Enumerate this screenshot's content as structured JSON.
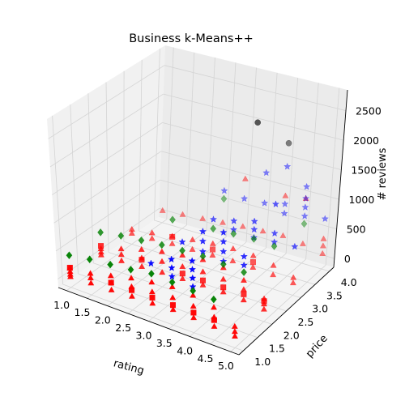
{
  "chart_data": {
    "type": "scatter3d",
    "title": "Business k-Means++",
    "xlabel": "rating",
    "ylabel": "price",
    "zlabel": "# reviews",
    "xlim": [
      0.8,
      5.2
    ],
    "ylim": [
      0.85,
      4.15
    ],
    "zlim": [
      -150,
      2850
    ],
    "xticks": [
      "1.0",
      "1.5",
      "2.0",
      "2.5",
      "3.0",
      "3.5",
      "4.0",
      "4.5",
      "5.0"
    ],
    "yticks": [
      "1.0",
      "1.5",
      "2.0",
      "2.5",
      "3.0",
      "3.5",
      "4.0"
    ],
    "zticks": [
      "0",
      "500",
      "1000",
      "1500",
      "2000",
      "2500"
    ],
    "grid": true,
    "colors": {
      "red": "#ff0000",
      "blue": "#0000ff",
      "green": "#008000",
      "black": "#000000"
    },
    "series": [
      {
        "color": "red",
        "marker": "triangle",
        "points": [
          [
            1.0,
            1.0,
            40
          ],
          [
            1.0,
            1.0,
            80
          ],
          [
            1.0,
            1.0,
            130
          ],
          [
            1.0,
            1.0,
            190
          ],
          [
            1.5,
            1.0,
            60
          ],
          [
            1.5,
            1.0,
            150
          ],
          [
            1.5,
            1.0,
            230
          ],
          [
            2.0,
            1.0,
            70
          ],
          [
            2.0,
            1.0,
            200
          ],
          [
            2.0,
            1.0,
            320
          ],
          [
            2.5,
            1.0,
            90
          ],
          [
            2.5,
            1.0,
            260
          ],
          [
            2.5,
            1.0,
            410
          ],
          [
            3.0,
            1.0,
            100
          ],
          [
            3.0,
            1.0,
            300
          ],
          [
            3.0,
            1.0,
            470
          ],
          [
            3.5,
            1.0,
            120
          ],
          [
            3.5,
            1.0,
            330
          ],
          [
            3.5,
            1.0,
            520
          ],
          [
            4.0,
            1.0,
            110
          ],
          [
            4.0,
            1.0,
            310
          ],
          [
            4.0,
            1.0,
            500
          ],
          [
            4.5,
            1.0,
            90
          ],
          [
            4.5,
            1.0,
            250
          ],
          [
            4.5,
            1.0,
            420
          ],
          [
            5.0,
            1.0,
            50
          ],
          [
            5.0,
            1.0,
            130
          ],
          [
            5.0,
            1.0,
            220
          ],
          [
            1.0,
            2.0,
            40
          ],
          [
            1.0,
            2.0,
            90
          ],
          [
            1.0,
            2.0,
            150
          ],
          [
            1.5,
            2.0,
            60
          ],
          [
            1.5,
            2.0,
            170
          ],
          [
            1.5,
            2.0,
            270
          ],
          [
            2.0,
            2.0,
            80
          ],
          [
            2.0,
            2.0,
            230
          ],
          [
            2.0,
            2.0,
            380
          ],
          [
            2.5,
            2.0,
            100
          ],
          [
            2.5,
            2.0,
            290
          ],
          [
            2.5,
            2.0,
            460
          ],
          [
            3.0,
            2.0,
            110
          ],
          [
            3.0,
            2.0,
            320
          ],
          [
            3.0,
            2.0,
            520
          ],
          [
            3.5,
            2.0,
            120
          ],
          [
            3.5,
            2.0,
            350
          ],
          [
            3.5,
            2.0,
            560
          ],
          [
            4.0,
            2.0,
            120
          ],
          [
            4.0,
            2.0,
            340
          ],
          [
            4.0,
            2.0,
            540
          ],
          [
            4.5,
            2.0,
            100
          ],
          [
            4.5,
            2.0,
            280
          ],
          [
            4.5,
            2.0,
            440
          ],
          [
            5.0,
            2.0,
            60
          ],
          [
            5.0,
            2.0,
            150
          ],
          [
            5.0,
            2.0,
            240
          ],
          [
            1.0,
            3.0,
            40
          ],
          [
            1.0,
            3.0,
            110
          ],
          [
            1.5,
            3.0,
            60
          ],
          [
            1.5,
            3.0,
            160
          ],
          [
            2.0,
            3.0,
            80
          ],
          [
            2.0,
            3.0,
            210
          ],
          [
            2.5,
            3.0,
            90
          ],
          [
            2.5,
            3.0,
            260
          ],
          [
            3.0,
            3.0,
            100
          ],
          [
            3.0,
            3.0,
            300
          ],
          [
            3.5,
            3.0,
            110
          ],
          [
            3.5,
            3.0,
            320
          ],
          [
            4.0,
            3.0,
            110
          ],
          [
            4.0,
            3.0,
            310
          ],
          [
            4.5,
            3.0,
            90
          ],
          [
            4.5,
            3.0,
            250
          ],
          [
            5.0,
            3.0,
            60
          ],
          [
            5.0,
            3.0,
            150
          ],
          [
            1.0,
            4.0,
            60
          ],
          [
            1.5,
            4.0,
            90
          ],
          [
            2.0,
            4.0,
            120
          ],
          [
            2.5,
            4.0,
            150
          ],
          [
            3.0,
            4.0,
            180
          ],
          [
            3.5,
            4.0,
            200
          ],
          [
            4.0,
            4.0,
            220
          ],
          [
            4.5,
            4.0,
            180
          ],
          [
            5.0,
            4.0,
            110
          ],
          [
            3.0,
            4.0,
            1000
          ],
          [
            4.0,
            4.0,
            900
          ],
          [
            4.5,
            4.0,
            950
          ],
          [
            5.0,
            4.0,
            240
          ],
          [
            5.0,
            4.0,
            360
          ]
        ]
      },
      {
        "color": "blue",
        "marker": "star",
        "points": [
          [
            3.5,
            1.0,
            700
          ],
          [
            3.5,
            1.0,
            850
          ],
          [
            3.5,
            1.0,
            1000
          ],
          [
            4.0,
            1.0,
            650
          ],
          [
            4.0,
            1.0,
            800
          ],
          [
            4.0,
            1.0,
            950
          ],
          [
            4.0,
            1.0,
            1100
          ],
          [
            3.5,
            2.0,
            700
          ],
          [
            3.5,
            2.0,
            880
          ],
          [
            3.5,
            2.0,
            1050
          ],
          [
            4.0,
            2.0,
            650
          ],
          [
            4.0,
            2.0,
            820
          ],
          [
            4.0,
            2.0,
            990
          ],
          [
            4.0,
            2.0,
            1150
          ],
          [
            4.5,
            2.0,
            700
          ],
          [
            4.5,
            2.0,
            850
          ],
          [
            3.5,
            3.0,
            650
          ],
          [
            3.5,
            3.0,
            800
          ],
          [
            4.0,
            3.0,
            620
          ],
          [
            4.0,
            3.0,
            760
          ],
          [
            4.0,
            3.0,
            900
          ],
          [
            4.5,
            3.0,
            650
          ],
          [
            4.5,
            3.0,
            800
          ],
          [
            4.0,
            4.0,
            600
          ],
          [
            4.0,
            4.0,
            760
          ],
          [
            4.5,
            4.0,
            650
          ],
          [
            4.5,
            4.0,
            800
          ],
          [
            4.5,
            4.0,
            950
          ],
          [
            5.0,
            4.0,
            700
          ],
          [
            3.0,
            1.0,
            800
          ],
          [
            3.0,
            2.0,
            750
          ],
          [
            3.0,
            3.0,
            720
          ],
          [
            3.5,
            4.0,
            680
          ],
          [
            3.0,
            4.0,
            660
          ],
          [
            2.5,
            4.0,
            700
          ],
          [
            5.0,
            3.0,
            680
          ],
          [
            3.5,
            4.0,
            1200
          ],
          [
            4.5,
            3.0,
            1300
          ],
          [
            4.0,
            4.0,
            1400
          ],
          [
            4.5,
            4.0,
            1150
          ]
        ]
      },
      {
        "color": "green",
        "marker": "diamond",
        "points": [
          [
            1.0,
            1.0,
            420
          ],
          [
            1.5,
            1.0,
            480
          ],
          [
            2.0,
            1.0,
            520
          ],
          [
            2.5,
            1.0,
            560
          ],
          [
            3.0,
            1.0,
            620
          ],
          [
            3.5,
            1.0,
            600
          ],
          [
            4.0,
            1.0,
            580
          ],
          [
            4.5,
            1.0,
            560
          ],
          [
            1.0,
            2.0,
            440
          ],
          [
            1.5,
            2.0,
            500
          ],
          [
            2.0,
            2.0,
            540
          ],
          [
            2.5,
            2.0,
            580
          ],
          [
            3.0,
            2.0,
            600
          ],
          [
            3.5,
            2.0,
            620
          ],
          [
            4.0,
            2.0,
            600
          ],
          [
            4.5,
            2.0,
            580
          ],
          [
            2.0,
            3.0,
            500
          ],
          [
            3.0,
            3.0,
            560
          ],
          [
            3.5,
            3.0,
            580
          ],
          [
            4.0,
            3.0,
            600
          ],
          [
            4.5,
            3.0,
            580
          ],
          [
            2.5,
            4.0,
            560
          ],
          [
            4.5,
            4.0,
            520
          ]
        ]
      },
      {
        "color": "black",
        "marker": "circle",
        "points": [
          [
            4.0,
            3.0,
            2600
          ],
          [
            4.0,
            4.0,
            1800
          ]
        ]
      }
    ],
    "centroids": [
      {
        "color": "red",
        "marker": "square",
        "points": [
          [
            1.0,
            1.0,
            200
          ],
          [
            1.0,
            2.0,
            200
          ],
          [
            2.0,
            1.0,
            200
          ],
          [
            2.0,
            2.0,
            200
          ],
          [
            2.0,
            3.0,
            200
          ],
          [
            2.5,
            1.0,
            200
          ],
          [
            3.0,
            1.0,
            200
          ],
          [
            3.0,
            2.0,
            200
          ],
          [
            3.0,
            3.0,
            200
          ],
          [
            3.5,
            1.0,
            200
          ],
          [
            3.5,
            2.0,
            200
          ],
          [
            4.0,
            1.0,
            200
          ],
          [
            4.0,
            2.0,
            200
          ],
          [
            4.0,
            3.0,
            200
          ],
          [
            4.5,
            1.0,
            200
          ],
          [
            4.5,
            2.0,
            200
          ],
          [
            5.0,
            2.0,
            200
          ]
        ]
      }
    ]
  }
}
